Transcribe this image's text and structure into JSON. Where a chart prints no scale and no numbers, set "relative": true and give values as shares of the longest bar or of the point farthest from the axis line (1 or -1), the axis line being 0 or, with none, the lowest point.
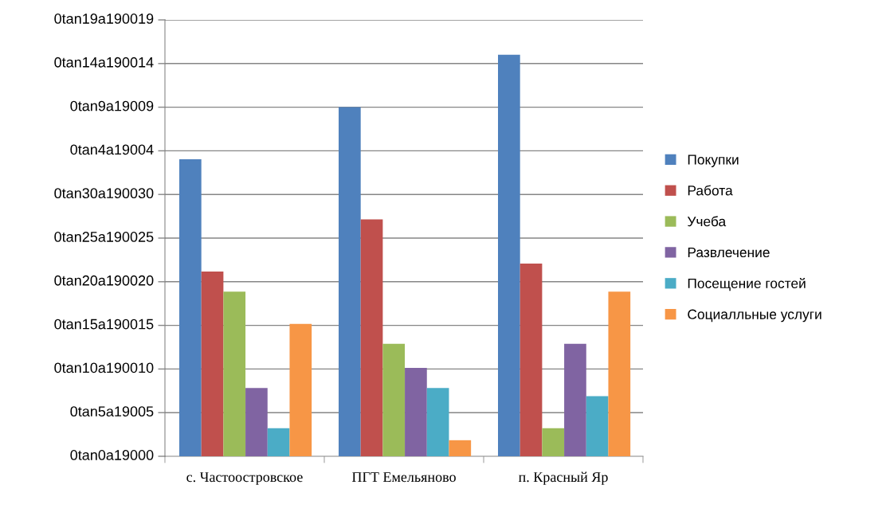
{
  "chart_data": {
    "type": "bar",
    "relative": true,
    "categories": [
      "с. Частоостровское",
      "ПГТ Емельяново",
      "п. Красный Яр"
    ],
    "series": [
      {
        "name": "Покупки",
        "color": "#4f81bd",
        "values": [
          0.74,
          0.87,
          1
        ]
      },
      {
        "name": "Работа",
        "color": "#c0504d",
        "values": [
          0.46,
          0.59,
          0.48
        ]
      },
      {
        "name": "Учеба",
        "color": "#9bbb59",
        "values": [
          0.41,
          0.28,
          0.07
        ]
      },
      {
        "name": "Развлечение",
        "color": "#8064a2",
        "values": [
          0.17,
          0.22,
          0.28
        ]
      },
      {
        "name": "Посещение гостей",
        "color": "#4bacc6",
        "values": [
          0.07,
          0.17,
          0.15
        ]
      },
      {
        "name": "Социалльные услуги",
        "color": "#f79646",
        "values": [
          0.33,
          0.04,
          0.41
        ]
      }
    ],
    "annotations": [
      "0tan0a19000",
      "0tan5a19005",
      "0tan10a190010",
      "0tan15a190015",
      "0tan20a190020",
      "0tan25a190025",
      "0tan30a190030",
      "0tan4a19004",
      "0tan9a19009",
      "0tan14a190014",
      "0tan19a190019"
    ],
    "grid": "y",
    "legend": "right"
  }
}
